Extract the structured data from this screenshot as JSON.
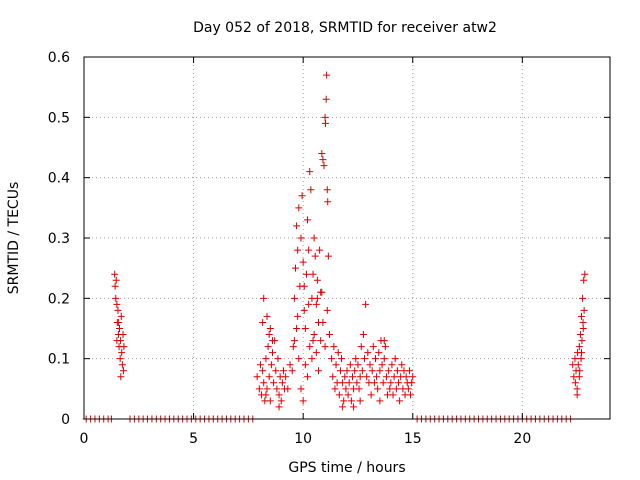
{
  "chart_data": {
    "type": "scatter",
    "title": "Day 052 of 2018, SRMTID for receiver atw2",
    "xlabel": "GPS time / hours",
    "ylabel": "SRMTID / TECUs",
    "xlim": [
      0,
      24
    ],
    "ylim": [
      0,
      0.6
    ],
    "x_ticks": [
      0,
      5,
      10,
      15,
      20
    ],
    "x_tick_labels": [
      "0",
      "5",
      "10",
      "15",
      "20"
    ],
    "y_ticks": [
      0,
      0.1,
      0.2,
      0.3,
      0.4,
      0.5,
      0.6
    ],
    "y_tick_labels": [
      "0",
      "0.1",
      "0.2",
      "0.3",
      "0.4",
      "0.5",
      "0.6"
    ],
    "grid": true,
    "marker": "+",
    "marker_color": "#e00000",
    "series": [
      {
        "name": "SRMTID",
        "points": [
          [
            0.1,
            0
          ],
          [
            0.3,
            0
          ],
          [
            0.5,
            0
          ],
          [
            0.7,
            0
          ],
          [
            0.9,
            0
          ],
          [
            1.1,
            0
          ],
          [
            1.25,
            0
          ],
          [
            1.4,
            0.24
          ],
          [
            1.42,
            0.22
          ],
          [
            1.45,
            0.2
          ],
          [
            1.47,
            0.23
          ],
          [
            1.5,
            0.19
          ],
          [
            1.52,
            0.16
          ],
          [
            1.55,
            0.18
          ],
          [
            1.57,
            0.14
          ],
          [
            1.6,
            0.12
          ],
          [
            1.62,
            0.15
          ],
          [
            1.65,
            0.1
          ],
          [
            1.67,
            0.13
          ],
          [
            1.7,
            0.17
          ],
          [
            1.72,
            0.11
          ],
          [
            1.75,
            0.09
          ],
          [
            1.78,
            0.14
          ],
          [
            1.8,
            0.08
          ],
          [
            1.82,
            0.12
          ],
          [
            1.5,
            0.13
          ],
          [
            1.58,
            0.16
          ],
          [
            1.68,
            0.07
          ],
          [
            2.1,
            0
          ],
          [
            2.3,
            0
          ],
          [
            2.5,
            0
          ],
          [
            2.7,
            0
          ],
          [
            2.9,
            0
          ],
          [
            3.1,
            0
          ],
          [
            3.3,
            0
          ],
          [
            3.5,
            0
          ],
          [
            3.7,
            0
          ],
          [
            3.9,
            0
          ],
          [
            4.1,
            0
          ],
          [
            4.3,
            0
          ],
          [
            4.5,
            0
          ],
          [
            4.7,
            0
          ],
          [
            4.9,
            0
          ],
          [
            5.1,
            0
          ],
          [
            5.3,
            0
          ],
          [
            5.5,
            0
          ],
          [
            5.7,
            0
          ],
          [
            5.9,
            0
          ],
          [
            6.1,
            0
          ],
          [
            6.3,
            0
          ],
          [
            6.5,
            0
          ],
          [
            6.7,
            0
          ],
          [
            6.9,
            0
          ],
          [
            7.1,
            0
          ],
          [
            7.3,
            0
          ],
          [
            7.5,
            0
          ],
          [
            7.7,
            0
          ],
          [
            7.9,
            0.07
          ],
          [
            8.0,
            0.05
          ],
          [
            8.05,
            0.09
          ],
          [
            8.1,
            0.04
          ],
          [
            8.15,
            0.08
          ],
          [
            8.2,
            0.06
          ],
          [
            8.25,
            0.03
          ],
          [
            8.3,
            0.1
          ],
          [
            8.35,
            0.05
          ],
          [
            8.4,
            0.12
          ],
          [
            8.45,
            0.07
          ],
          [
            8.5,
            0.15
          ],
          [
            8.55,
            0.09
          ],
          [
            8.6,
            0.11
          ],
          [
            8.65,
            0.06
          ],
          [
            8.7,
            0.13
          ],
          [
            8.75,
            0.08
          ],
          [
            8.8,
            0.05
          ],
          [
            8.85,
            0.1
          ],
          [
            8.9,
            0.04
          ],
          [
            8.95,
            0.07
          ],
          [
            9.0,
            0.03
          ],
          [
            9.05,
            0.06
          ],
          [
            9.1,
            0.08
          ],
          [
            9.15,
            0.05
          ],
          [
            9.2,
            0.07
          ],
          [
            8.2,
            0.2
          ],
          [
            8.35,
            0.17
          ],
          [
            8.45,
            0.14
          ],
          [
            8.6,
            0.13
          ],
          [
            8.15,
            0.16
          ],
          [
            8.3,
            0.04
          ],
          [
            8.5,
            0.03
          ],
          [
            8.9,
            0.02
          ],
          [
            9.3,
            0.05
          ],
          [
            9.4,
            0.09
          ],
          [
            9.5,
            0.08
          ],
          [
            9.55,
            0.12
          ],
          [
            9.6,
            0.2
          ],
          [
            9.65,
            0.25
          ],
          [
            9.7,
            0.32
          ],
          [
            9.75,
            0.28
          ],
          [
            9.8,
            0.35
          ],
          [
            9.85,
            0.22
          ],
          [
            9.9,
            0.3
          ],
          [
            9.95,
            0.37
          ],
          [
            10.0,
            0.26
          ],
          [
            10.05,
            0.18
          ],
          [
            10.1,
            0.15
          ],
          [
            10.15,
            0.24
          ],
          [
            10.2,
            0.33
          ],
          [
            10.25,
            0.28
          ],
          [
            10.3,
            0.41
          ],
          [
            10.35,
            0.38
          ],
          [
            10.4,
            0.2
          ],
          [
            10.45,
            0.13
          ],
          [
            10.5,
            0.3
          ],
          [
            10.55,
            0.27
          ],
          [
            10.6,
            0.19
          ],
          [
            10.65,
            0.23
          ],
          [
            10.7,
            0.16
          ],
          [
            10.75,
            0.28
          ],
          [
            10.8,
            0.21
          ],
          [
            10.85,
            0.44
          ],
          [
            10.9,
            0.43
          ],
          [
            10.95,
            0.42
          ],
          [
            11.0,
            0.5
          ],
          [
            11.02,
            0.49
          ],
          [
            11.05,
            0.53
          ],
          [
            11.07,
            0.57
          ],
          [
            11.1,
            0.38
          ],
          [
            11.12,
            0.36
          ],
          [
            11.15,
            0.27
          ],
          [
            9.7,
            0.15
          ],
          [
            9.8,
            0.1
          ],
          [
            9.9,
            0.05
          ],
          [
            10.0,
            0.03
          ],
          [
            10.1,
            0.09
          ],
          [
            10.2,
            0.07
          ],
          [
            10.3,
            0.12
          ],
          [
            10.4,
            0.1
          ],
          [
            10.5,
            0.14
          ],
          [
            10.6,
            0.11
          ],
          [
            10.7,
            0.08
          ],
          [
            10.8,
            0.13
          ],
          [
            10.9,
            0.16
          ],
          [
            11.0,
            0.12
          ],
          [
            11.1,
            0.18
          ],
          [
            9.6,
            0.13
          ],
          [
            9.75,
            0.17
          ],
          [
            10.05,
            0.22
          ],
          [
            10.25,
            0.19
          ],
          [
            10.45,
            0.24
          ],
          [
            10.65,
            0.2
          ],
          [
            10.85,
            0.21
          ],
          [
            11.2,
            0.14
          ],
          [
            11.3,
            0.1
          ],
          [
            11.35,
            0.07
          ],
          [
            11.4,
            0.12
          ],
          [
            11.45,
            0.05
          ],
          [
            11.5,
            0.09
          ],
          [
            11.55,
            0.06
          ],
          [
            11.6,
            0.11
          ],
          [
            11.65,
            0.04
          ],
          [
            11.7,
            0.08
          ],
          [
            11.75,
            0.1
          ],
          [
            11.8,
            0.06
          ],
          [
            11.85,
            0.03
          ],
          [
            11.9,
            0.07
          ],
          [
            11.95,
            0.05
          ],
          [
            12.0,
            0.08
          ],
          [
            12.05,
            0.04
          ],
          [
            12.1,
            0.06
          ],
          [
            12.15,
            0.09
          ],
          [
            12.2,
            0.03
          ],
          [
            12.25,
            0.07
          ],
          [
            12.3,
            0.05
          ],
          [
            12.35,
            0.08
          ],
          [
            12.4,
            0.1
          ],
          [
            12.45,
            0.06
          ],
          [
            12.5,
            0.09
          ],
          [
            12.55,
            0.05
          ],
          [
            12.6,
            0.07
          ],
          [
            12.65,
            0.12
          ],
          [
            12.7,
            0.08
          ],
          [
            12.75,
            0.14
          ],
          [
            12.8,
            0.1
          ],
          [
            12.85,
            0.19
          ],
          [
            12.9,
            0.07
          ],
          [
            12.95,
            0.11
          ],
          [
            13.0,
            0.06
          ],
          [
            13.05,
            0.09
          ],
          [
            13.1,
            0.04
          ],
          [
            13.15,
            0.08
          ],
          [
            13.2,
            0.12
          ],
          [
            13.25,
            0.06
          ],
          [
            13.3,
            0.1
          ],
          [
            13.35,
            0.07
          ],
          [
            13.4,
            0.05
          ],
          [
            13.45,
            0.11
          ],
          [
            13.5,
            0.08
          ],
          [
            13.55,
            0.13
          ],
          [
            13.6,
            0.09
          ],
          [
            13.65,
            0.06
          ],
          [
            13.7,
            0.1
          ],
          [
            13.75,
            0.12
          ],
          [
            13.8,
            0.07
          ],
          [
            13.85,
            0.04
          ],
          [
            13.9,
            0.08
          ],
          [
            13.95,
            0.05
          ],
          [
            14.0,
            0.06
          ],
          [
            14.05,
            0.09
          ],
          [
            14.1,
            0.04
          ],
          [
            14.15,
            0.07
          ],
          [
            14.2,
            0.1
          ],
          [
            14.25,
            0.05
          ],
          [
            14.3,
            0.08
          ],
          [
            14.35,
            0.06
          ],
          [
            14.4,
            0.03
          ],
          [
            14.45,
            0.07
          ],
          [
            14.5,
            0.09
          ],
          [
            14.55,
            0.05
          ],
          [
            14.6,
            0.08
          ],
          [
            14.65,
            0.04
          ],
          [
            14.7,
            0.07
          ],
          [
            14.75,
            0.06
          ],
          [
            14.8,
            0.05
          ],
          [
            14.85,
            0.08
          ],
          [
            14.9,
            0.04
          ],
          [
            14.95,
            0.06
          ],
          [
            15.0,
            0.07
          ],
          [
            11.8,
            0.02
          ],
          [
            12.3,
            0.02
          ],
          [
            13.7,
            0.13
          ],
          [
            13.5,
            0.03
          ],
          [
            12.6,
            0.03
          ],
          [
            15.2,
            0
          ],
          [
            15.4,
            0
          ],
          [
            15.6,
            0
          ],
          [
            15.8,
            0
          ],
          [
            16.0,
            0
          ],
          [
            16.2,
            0
          ],
          [
            16.4,
            0
          ],
          [
            16.6,
            0
          ],
          [
            16.8,
            0
          ],
          [
            17.0,
            0
          ],
          [
            17.2,
            0
          ],
          [
            17.4,
            0
          ],
          [
            17.6,
            0
          ],
          [
            17.8,
            0
          ],
          [
            18.0,
            0
          ],
          [
            18.2,
            0
          ],
          [
            18.4,
            0
          ],
          [
            18.6,
            0
          ],
          [
            18.8,
            0
          ],
          [
            19.0,
            0
          ],
          [
            19.2,
            0
          ],
          [
            19.4,
            0
          ],
          [
            19.6,
            0
          ],
          [
            19.8,
            0
          ],
          [
            20.0,
            0
          ],
          [
            20.2,
            0
          ],
          [
            20.4,
            0
          ],
          [
            20.6,
            0
          ],
          [
            20.8,
            0
          ],
          [
            21.0,
            0
          ],
          [
            21.2,
            0
          ],
          [
            21.4,
            0
          ],
          [
            21.6,
            0
          ],
          [
            21.8,
            0
          ],
          [
            22.0,
            0
          ],
          [
            22.2,
            0
          ],
          [
            22.3,
            0.09
          ],
          [
            22.35,
            0.07
          ],
          [
            22.4,
            0.1
          ],
          [
            22.42,
            0.06
          ],
          [
            22.45,
            0.08
          ],
          [
            22.5,
            0.05
          ],
          [
            22.52,
            0.11
          ],
          [
            22.55,
            0.09
          ],
          [
            22.6,
            0.12
          ],
          [
            22.62,
            0.08
          ],
          [
            22.65,
            0.14
          ],
          [
            22.68,
            0.1
          ],
          [
            22.7,
            0.17
          ],
          [
            22.72,
            0.13
          ],
          [
            22.75,
            0.2
          ],
          [
            22.77,
            0.16
          ],
          [
            22.8,
            0.23
          ],
          [
            22.82,
            0.18
          ],
          [
            22.85,
            0.24
          ],
          [
            22.7,
            0.11
          ],
          [
            22.78,
            0.15
          ],
          [
            22.6,
            0.07
          ],
          [
            22.5,
            0.04
          ]
        ]
      }
    ]
  }
}
